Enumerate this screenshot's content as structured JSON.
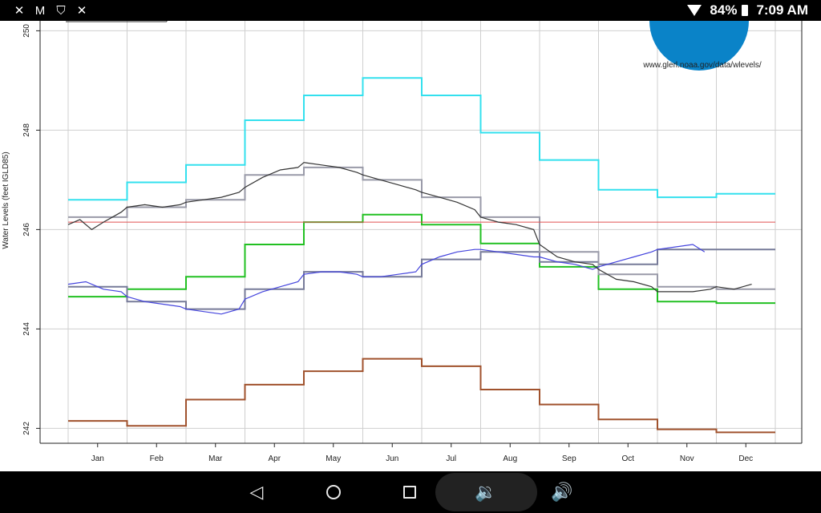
{
  "status_bar": {
    "icons_left": [
      "tools-icon",
      "mail-icon",
      "shield-icon",
      "tools-icon"
    ],
    "battery": "84%",
    "time": "7:09 AM"
  },
  "chart_data": {
    "type": "line",
    "ylabel": "Water Levels (feet IGLD85)",
    "url": "www.glerl.noaa.gov/data/wlevels/",
    "ylim": [
      241.7,
      250.2
    ],
    "y_ticks": [
      242,
      244,
      246,
      248,
      250
    ],
    "categories": [
      "Jan",
      "Feb",
      "Mar",
      "Apr",
      "May",
      "Jun",
      "Jul",
      "Aug",
      "Sep",
      "Oct",
      "Nov",
      "Dec"
    ],
    "grid": true,
    "series": [
      {
        "name": "",
        "kind": "step",
        "color": "#33e0ee",
        "values": [
          246.6,
          246.95,
          247.3,
          248.2,
          248.7,
          249.05,
          248.7,
          247.95,
          247.4,
          246.8,
          246.65,
          246.72
        ]
      },
      {
        "name": "",
        "kind": "step",
        "color": "#22c022",
        "values": [
          244.65,
          244.8,
          245.05,
          245.7,
          246.15,
          246.3,
          246.1,
          245.72,
          245.25,
          244.8,
          244.55,
          244.52
        ]
      },
      {
        "name": "",
        "kind": "step",
        "color": "#a0522d",
        "values": [
          242.15,
          242.05,
          242.58,
          242.88,
          243.15,
          243.4,
          243.25,
          242.78,
          242.48,
          242.18,
          241.98,
          241.92
        ]
      },
      {
        "name": "",
        "kind": "step",
        "color": "#777b99",
        "values": [
          244.85,
          244.55,
          244.4,
          244.8,
          245.15,
          245.05,
          245.4,
          245.55,
          245.35,
          245.3,
          245.6,
          245.6
        ]
      },
      {
        "name": "",
        "kind": "step",
        "color": "#999aa8",
        "values": [
          246.25,
          246.45,
          246.6,
          247.1,
          247.25,
          247.0,
          246.65,
          246.25,
          245.55,
          245.1,
          244.85,
          244.8
        ]
      },
      {
        "name": "",
        "kind": "hline",
        "color": "#e05050",
        "value": 246.15
      },
      {
        "name": "",
        "kind": "daily",
        "color": "#4444dd",
        "x": [
          0,
          0.3,
          0.6,
          0.9,
          1.0,
          1.3,
          1.6,
          1.9,
          2.0,
          2.3,
          2.6,
          2.9,
          3.0,
          3.3,
          3.6,
          3.9,
          4.0,
          4.3,
          4.6,
          4.9,
          5.0,
          5.3,
          5.6,
          5.9,
          6.0,
          6.3,
          6.6,
          6.9,
          7.0,
          7.3,
          7.6,
          7.9,
          8.0,
          8.3,
          8.6,
          8.9,
          9.0,
          9.3,
          9.6,
          9.9,
          10.0,
          10.3,
          10.6,
          10.8
        ],
        "values": [
          244.9,
          244.95,
          244.8,
          244.75,
          244.65,
          244.55,
          244.5,
          244.45,
          244.4,
          244.35,
          244.3,
          244.4,
          244.6,
          244.75,
          244.85,
          244.95,
          245.1,
          245.15,
          245.15,
          245.1,
          245.05,
          245.05,
          245.1,
          245.15,
          245.3,
          245.45,
          245.55,
          245.6,
          245.6,
          245.55,
          245.5,
          245.45,
          245.45,
          245.35,
          245.3,
          245.2,
          245.25,
          245.35,
          245.45,
          245.55,
          245.6,
          245.65,
          245.7,
          245.55
        ]
      },
      {
        "name": "",
        "kind": "daily",
        "color": "#333333",
        "x": [
          0,
          0.2,
          0.4,
          0.6,
          0.9,
          1.0,
          1.3,
          1.6,
          1.9,
          2.0,
          2.3,
          2.6,
          2.9,
          3.0,
          3.3,
          3.6,
          3.9,
          4.0,
          4.3,
          4.6,
          4.9,
          5.0,
          5.3,
          5.6,
          5.9,
          6.0,
          6.3,
          6.6,
          6.9,
          7.0,
          7.3,
          7.6,
          7.9,
          8.0,
          8.3,
          8.6,
          8.9,
          9.0,
          9.3,
          9.6,
          9.9,
          10.0,
          10.3,
          10.6,
          10.9,
          11.0,
          11.3,
          11.6
        ],
        "values": [
          246.1,
          246.2,
          246.0,
          246.15,
          246.35,
          246.45,
          246.5,
          246.45,
          246.5,
          246.55,
          246.6,
          246.65,
          246.75,
          246.85,
          247.05,
          247.2,
          247.25,
          247.35,
          247.3,
          247.25,
          247.15,
          247.1,
          247.0,
          246.9,
          246.8,
          246.75,
          246.65,
          246.55,
          246.4,
          246.25,
          246.15,
          246.1,
          246.0,
          245.7,
          245.45,
          245.35,
          245.3,
          245.2,
          245.0,
          244.95,
          244.85,
          244.75,
          244.75,
          244.75,
          244.8,
          244.85,
          244.8,
          244.9
        ]
      }
    ]
  },
  "nav_bar": {
    "buttons": [
      "back-icon",
      "home-icon",
      "recents-icon",
      "volume-down-icon",
      "volume-up-icon"
    ]
  }
}
